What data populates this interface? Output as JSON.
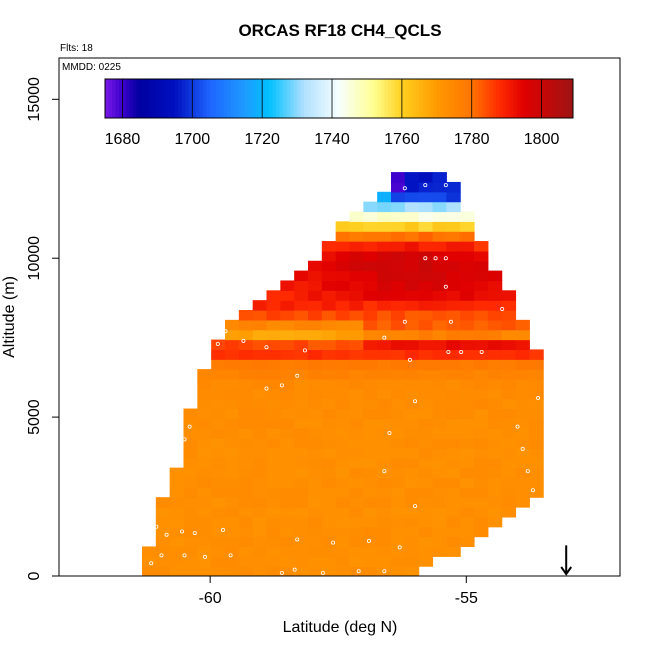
{
  "chart_data": {
    "type": "heatmap",
    "title": "ORCAS RF18 CH4_QCLS",
    "annotations": [
      "Flts: 18",
      "MMDD: 0225"
    ],
    "xlabel": "Latitude (deg N)",
    "ylabel": "Altitude (m)",
    "xlim": [
      -62.95,
      -52.0
    ],
    "ylim": [
      0,
      16300
    ],
    "x_ticks": [
      -60,
      -55
    ],
    "x_tick_labels": [
      "-60",
      "-55"
    ],
    "y_ticks": [
      0,
      5000,
      10000,
      15000
    ],
    "y_tick_labels": [
      "0",
      "5000",
      "10000",
      "15000"
    ],
    "colorbar": {
      "min": 1675,
      "max": 1809,
      "ticks": [
        1680,
        1700,
        1720,
        1740,
        1760,
        1780,
        1800
      ],
      "tick_labels": [
        "1680",
        "1700",
        "1720",
        "1740",
        "1760",
        "1780",
        "1800"
      ],
      "stops": [
        {
          "v": 1675,
          "c": "#7a1ae8"
        },
        {
          "v": 1680,
          "c": "#3c00cc"
        },
        {
          "v": 1685,
          "c": "#0000a0"
        },
        {
          "v": 1695,
          "c": "#0010c0"
        },
        {
          "v": 1705,
          "c": "#1e64ff"
        },
        {
          "v": 1715,
          "c": "#1e9bff"
        },
        {
          "v": 1722,
          "c": "#00c0ff"
        },
        {
          "v": 1732,
          "c": "#b0e0ff"
        },
        {
          "v": 1742,
          "c": "#f8ffff"
        },
        {
          "v": 1752,
          "c": "#ffff90"
        },
        {
          "v": 1760,
          "c": "#ffd020"
        },
        {
          "v": 1770,
          "c": "#ff9a00"
        },
        {
          "v": 1780,
          "c": "#ff7400"
        },
        {
          "v": 1788,
          "c": "#ff2a00"
        },
        {
          "v": 1795,
          "c": "#e00000"
        },
        {
          "v": 1809,
          "c": "#9e1414"
        }
      ]
    },
    "grid_bins": {
      "lat_step": 0.27,
      "alt_step": 310
    },
    "profile": [
      {
        "alt": 12250,
        "value": 1716
      },
      {
        "alt": 11800,
        "value": 1722
      },
      {
        "alt": 11400,
        "value": 1742
      },
      {
        "alt": 11100,
        "value": 1755
      },
      {
        "alt": 10850,
        "value": 1768
      },
      {
        "alt": 10600,
        "value": 1782
      },
      {
        "alt": 10300,
        "value": 1788
      },
      {
        "alt": 10000,
        "value": 1795
      },
      {
        "alt": 9600,
        "value": 1794
      },
      {
        "alt": 9100,
        "value": 1793
      },
      {
        "alt": 8600,
        "value": 1790
      },
      {
        "alt": 8200,
        "value": 1784
      },
      {
        "alt": 7900,
        "value": 1777
      },
      {
        "alt": 7600,
        "value": 1770
      },
      {
        "alt": 7300,
        "value": 1786
      },
      {
        "alt": 7050,
        "value": 1791
      },
      {
        "alt": 6800,
        "value": 1779
      },
      {
        "alt": 6000,
        "value": 1774
      },
      {
        "alt": 4000,
        "value": 1773
      },
      {
        "alt": 2000,
        "value": 1773
      },
      {
        "alt": 0,
        "value": 1773
      }
    ],
    "coverage": {
      "left_edge": [
        [
          0,
          -61.25
        ],
        [
          1000,
          -61.2
        ],
        [
          1800,
          -61.1
        ],
        [
          2600,
          -60.85
        ],
        [
          3500,
          -60.65
        ],
        [
          4600,
          -60.5
        ],
        [
          5600,
          -60.3
        ],
        [
          6700,
          -60.1
        ],
        [
          7600,
          -59.8
        ],
        [
          8500,
          -59.3
        ],
        [
          9300,
          -58.6
        ],
        [
          10200,
          -57.8
        ],
        [
          11000,
          -57.45
        ],
        [
          11700,
          -56.9
        ],
        [
          12400,
          -56.35
        ]
      ],
      "right_edge": [
        [
          0,
          -56.1
        ],
        [
          600,
          -55.4
        ],
        [
          1500,
          -54.5
        ],
        [
          2600,
          -53.55
        ],
        [
          4000,
          -53.5
        ],
        [
          5500,
          -53.45
        ],
        [
          6800,
          -53.5
        ],
        [
          7300,
          -53.8
        ],
        [
          8500,
          -54.0
        ],
        [
          9500,
          -54.4
        ],
        [
          10500,
          -54.7
        ],
        [
          11200,
          -54.9
        ],
        [
          12200,
          -55.1
        ],
        [
          12400,
          -55.3
        ]
      ],
      "lower_left_gap": [
        [
          0,
          -59.1
        ],
        [
          700,
          -59.0
        ],
        [
          1200,
          -58.3
        ],
        [
          900,
          -57.3
        ],
        [
          500,
          -57.0
        ],
        [
          300,
          -56.3
        ],
        [
          0,
          -56.2
        ]
      ]
    },
    "samples": [
      {
        "lat": -61.15,
        "alt": 400
      },
      {
        "lat": -60.95,
        "alt": 650
      },
      {
        "lat": -60.5,
        "alt": 650
      },
      {
        "lat": -60.1,
        "alt": 600
      },
      {
        "lat": -59.6,
        "alt": 650
      },
      {
        "lat": -61.05,
        "alt": 1550
      },
      {
        "lat": -60.85,
        "alt": 1300
      },
      {
        "lat": -60.55,
        "alt": 1400
      },
      {
        "lat": -60.3,
        "alt": 1350
      },
      {
        "lat": -59.75,
        "alt": 1450
      },
      {
        "lat": -58.6,
        "alt": 100
      },
      {
        "lat": -58.35,
        "alt": 200
      },
      {
        "lat": -57.8,
        "alt": 100
      },
      {
        "lat": -57.1,
        "alt": 150
      },
      {
        "lat": -56.6,
        "alt": 150
      },
      {
        "lat": -58.3,
        "alt": 1150
      },
      {
        "lat": -57.6,
        "alt": 1050
      },
      {
        "lat": -56.9,
        "alt": 1100
      },
      {
        "lat": -56.3,
        "alt": 900
      },
      {
        "lat": -56.0,
        "alt": 2200
      },
      {
        "lat": -60.85,
        "alt": 2800
      },
      {
        "lat": -60.7,
        "alt": 3700
      },
      {
        "lat": -60.5,
        "alt": 4300
      },
      {
        "lat": -60.4,
        "alt": 4700
      },
      {
        "lat": -60.1,
        "alt": 6600
      },
      {
        "lat": -59.85,
        "alt": 7300
      },
      {
        "lat": -59.7,
        "alt": 7700
      },
      {
        "lat": -59.35,
        "alt": 7400
      },
      {
        "lat": -58.9,
        "alt": 7200
      },
      {
        "lat": -58.15,
        "alt": 7100
      },
      {
        "lat": -58.9,
        "alt": 5900
      },
      {
        "lat": -58.6,
        "alt": 6000
      },
      {
        "lat": -58.3,
        "alt": 6300
      },
      {
        "lat": -56.6,
        "alt": 7500
      },
      {
        "lat": -56.1,
        "alt": 6800
      },
      {
        "lat": -55.35,
        "alt": 7050
      },
      {
        "lat": -55.1,
        "alt": 7050
      },
      {
        "lat": -54.7,
        "alt": 7050
      },
      {
        "lat": -55.3,
        "alt": 8000
      },
      {
        "lat": -56.2,
        "alt": 8000
      },
      {
        "lat": -55.4,
        "alt": 9100
      },
      {
        "lat": -54.3,
        "alt": 8400
      },
      {
        "lat": -55.8,
        "alt": 10000
      },
      {
        "lat": -55.6,
        "alt": 10000
      },
      {
        "lat": -55.4,
        "alt": 10000
      },
      {
        "lat": -57.3,
        "alt": 11700
      },
      {
        "lat": -56.95,
        "alt": 12200
      },
      {
        "lat": -56.6,
        "alt": 12200
      },
      {
        "lat": -56.2,
        "alt": 12200
      },
      {
        "lat": -55.8,
        "alt": 12300
      },
      {
        "lat": -55.4,
        "alt": 12300
      },
      {
        "lat": -56.0,
        "alt": 5500
      },
      {
        "lat": -56.5,
        "alt": 4500
      },
      {
        "lat": -56.6,
        "alt": 3300
      },
      {
        "lat": -53.6,
        "alt": 5600
      },
      {
        "lat": -54.0,
        "alt": 4700
      },
      {
        "lat": -53.9,
        "alt": 4000
      },
      {
        "lat": -53.8,
        "alt": 3300
      },
      {
        "lat": -53.7,
        "alt": 2700
      },
      {
        "lat": -53.5,
        "alt": 1700
      }
    ],
    "arrow": {
      "lat": -53.05,
      "alt_top": 650,
      "alt_bottom": 0
    },
    "grid": false,
    "legend": "colorbar top inside plot"
  }
}
